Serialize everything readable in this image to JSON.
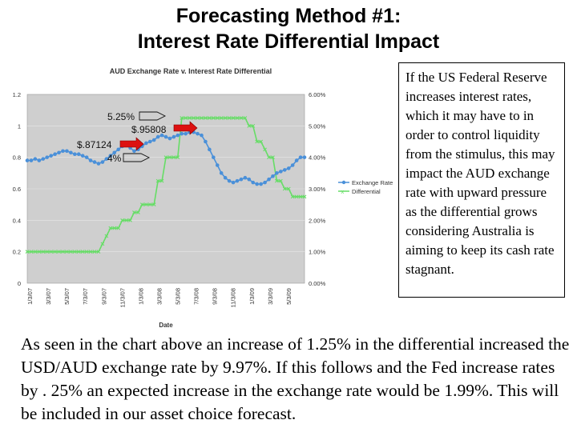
{
  "slide": {
    "title_line1": "Forecasting Method #1:",
    "title_line2": "Interest Rate Differential Impact"
  },
  "side_text": "If the US Federal Reserve increases interest rates, which it may have to in order to control liquidity from the stimulus, this may impact the AUD exchange rate with upward pressure as the differential grows considering Australia is aiming to keep its cash rate stagnant.",
  "body_text": "As seen in the chart above an increase of 1.25% in the differential increased the USD/AUD exchange rate by 9.97%.  If this follows and the Fed increase rates by . 25% an expected increase in the exchange rate would be 1.99%.  This will be included in our asset choice forecast.",
  "colors": {
    "exchange_rate": "#4a90d9",
    "differential": "#66dd66",
    "plot_bg": "#cfcfcf",
    "arrow": "#dd1111"
  },
  "chart_data": {
    "type": "line",
    "title": "AUD Exchange Rate v. Interest Rate Differential",
    "xlabel": "Date",
    "ylabel_left": "",
    "ylabel_right": "",
    "ylim_left": [
      0,
      1.2
    ],
    "ylim_right": [
      0,
      6
    ],
    "left_ticks": [
      "0",
      "0.2",
      "0.4",
      "0.6",
      "0.8",
      "1",
      "1.2"
    ],
    "right_ticks": [
      "0.00%",
      "1.00%",
      "2.00%",
      "3.00%",
      "4.00%",
      "5.00%",
      "6.00%"
    ],
    "x_tick_labels": [
      "1/3/07",
      "3/3/07",
      "5/3/07",
      "7/3/07",
      "9/3/07",
      "11/3/07",
      "1/3/08",
      "3/3/08",
      "5/3/08",
      "7/3/08",
      "9/3/08",
      "11/3/08",
      "1/3/09",
      "3/3/09",
      "5/3/09"
    ],
    "grid": true,
    "legend_position": "right",
    "series": [
      {
        "name": "Exchange Rate",
        "axis": "left",
        "values": [
          0.78,
          0.78,
          0.79,
          0.78,
          0.79,
          0.8,
          0.81,
          0.82,
          0.83,
          0.84,
          0.84,
          0.83,
          0.82,
          0.82,
          0.81,
          0.8,
          0.78,
          0.77,
          0.76,
          0.77,
          0.79,
          0.81,
          0.83,
          0.85,
          0.87,
          0.88,
          0.86,
          0.84,
          0.85,
          0.87,
          0.89,
          0.9,
          0.91,
          0.93,
          0.94,
          0.93,
          0.92,
          0.93,
          0.94,
          0.95,
          0.95,
          0.96,
          0.96,
          0.95,
          0.94,
          0.9,
          0.85,
          0.8,
          0.75,
          0.7,
          0.67,
          0.65,
          0.64,
          0.65,
          0.66,
          0.67,
          0.66,
          0.64,
          0.63,
          0.63,
          0.64,
          0.66,
          0.68,
          0.7,
          0.71,
          0.72,
          0.73,
          0.75,
          0.78,
          0.8,
          0.8
        ]
      },
      {
        "name": "Differential",
        "axis": "right",
        "values": [
          1.0,
          1.0,
          1.0,
          1.0,
          1.0,
          1.0,
          1.0,
          1.0,
          1.0,
          1.0,
          1.0,
          1.0,
          1.0,
          1.0,
          1.0,
          1.0,
          1.0,
          1.0,
          1.0,
          1.25,
          1.5,
          1.75,
          1.75,
          1.75,
          2.0,
          2.0,
          2.0,
          2.25,
          2.25,
          2.5,
          2.5,
          2.5,
          2.5,
          3.25,
          3.25,
          4.0,
          4.0,
          4.0,
          4.0,
          5.25,
          5.25,
          5.25,
          5.25,
          5.25,
          5.25,
          5.25,
          5.25,
          5.25,
          5.25,
          5.25,
          5.25,
          5.25,
          5.25,
          5.25,
          5.25,
          5.25,
          5.0,
          5.0,
          4.5,
          4.5,
          4.25,
          4.0,
          4.0,
          3.25,
          3.25,
          3.0,
          3.0,
          2.75,
          2.75,
          2.75,
          2.75
        ]
      }
    ],
    "annotations": [
      {
        "text": "5.25%",
        "kind": "label"
      },
      {
        "text": "$.95808",
        "kind": "label"
      },
      {
        "text": "$.87124",
        "kind": "label"
      },
      {
        "text": "4%",
        "kind": "label"
      }
    ]
  }
}
